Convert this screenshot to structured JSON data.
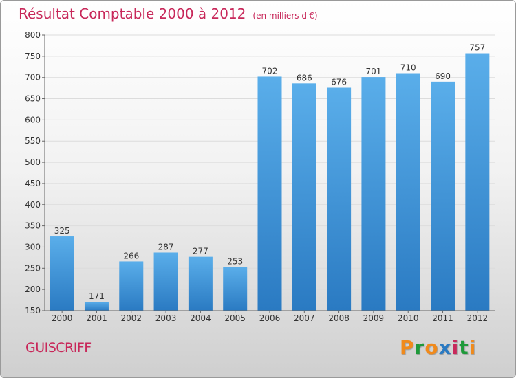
{
  "header": {
    "title": "Résultat Comptable 2000 à 2012",
    "unit": "(en milliers d'€)"
  },
  "footer": {
    "city": "GUISCRIFF",
    "brand": "Proxiti"
  },
  "colors": {
    "bar_top": "#5aaeea",
    "bar_bottom": "#2a7ac2",
    "title": "#c8285a",
    "brand_letters": [
      "#f08a1c",
      "#1e9a3a",
      "#f08a1c",
      "#2a7ac2",
      "#c8285a",
      "#1e9a3a",
      "#f08a1c"
    ]
  },
  "chart_data": {
    "type": "bar",
    "title": "Résultat Comptable 2000 à 2012",
    "subtitle": "(en milliers d'€)",
    "xlabel": "",
    "ylabel": "",
    "categories": [
      "2000",
      "2001",
      "2002",
      "2003",
      "2004",
      "2005",
      "2006",
      "2007",
      "2008",
      "2009",
      "2010",
      "2011",
      "2012"
    ],
    "values": [
      325,
      171,
      266,
      287,
      277,
      253,
      702,
      686,
      676,
      701,
      710,
      690,
      757
    ],
    "ylim": [
      150,
      800
    ],
    "yticks": [
      150,
      200,
      250,
      300,
      350,
      400,
      450,
      500,
      550,
      600,
      650,
      700,
      750,
      800
    ],
    "grid": true,
    "data_labels": true
  }
}
